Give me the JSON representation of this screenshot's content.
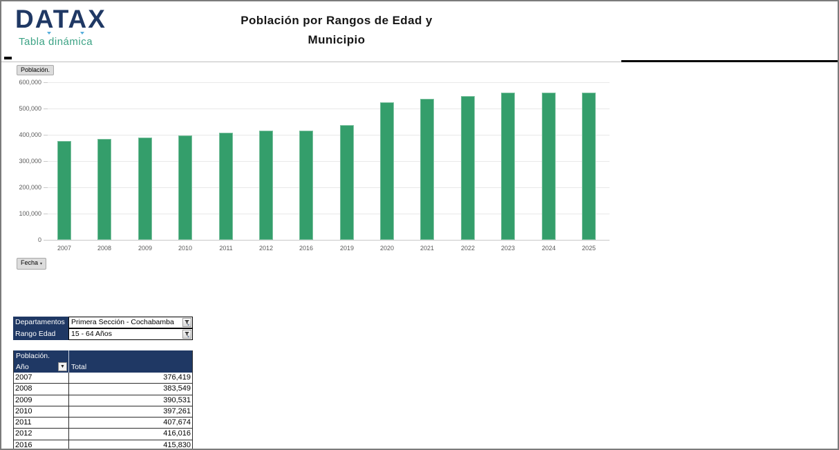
{
  "header": {
    "logo_text": "DATAX",
    "logo_subtitle": "Tabla dinámica",
    "title_line1": "Población  por Rangos de Edad y",
    "title_line2": "Municipio"
  },
  "chart": {
    "value_field_button": "Población.",
    "axis_field_button": "Fecha",
    "axis_button_arrow": "▾"
  },
  "chart_data": {
    "type": "bar",
    "title": "Población por Rangos de Edad y Municipio",
    "categories": [
      "2007",
      "2008",
      "2009",
      "2010",
      "2011",
      "2012",
      "2016",
      "2019",
      "2020",
      "2021",
      "2022",
      "2023",
      "2024",
      "2025"
    ],
    "values": [
      376419,
      383549,
      390531,
      397261,
      407674,
      416016,
      415830,
      438000,
      524000,
      536000,
      547000,
      560000,
      561000,
      560000
    ],
    "ylim": [
      0,
      600000
    ],
    "ytick_labels": [
      "0",
      "100,000",
      "200,000",
      "300,000",
      "400,000",
      "500,000",
      "600,000"
    ],
    "xlabel": "Fecha",
    "ylabel": "Población",
    "grid": true,
    "legend": "none",
    "bar_color": "#349e6b"
  },
  "filters": [
    {
      "label": "Departamentos",
      "value": "Primera Sección - Cochabamba"
    },
    {
      "label": "Rango Edad",
      "value": "15 - 64 Años"
    }
  ],
  "pivot_table": {
    "field_cell": "Población.",
    "row_header": "Año",
    "row_header_arrow": "▼",
    "value_header": "Total",
    "rows": [
      {
        "year": "2007",
        "total": "376,419"
      },
      {
        "year": "2008",
        "total": "383,549"
      },
      {
        "year": "2009",
        "total": "390,531"
      },
      {
        "year": "2010",
        "total": "397,261"
      },
      {
        "year": "2011",
        "total": "407,674"
      },
      {
        "year": "2012",
        "total": "416,016"
      },
      {
        "year": "2016",
        "total": "415,830"
      }
    ]
  },
  "colors": {
    "navy": "#1f3864",
    "bar_green": "#349e6b",
    "logo_teal": "#3ba284",
    "axis_text": "#595959"
  }
}
